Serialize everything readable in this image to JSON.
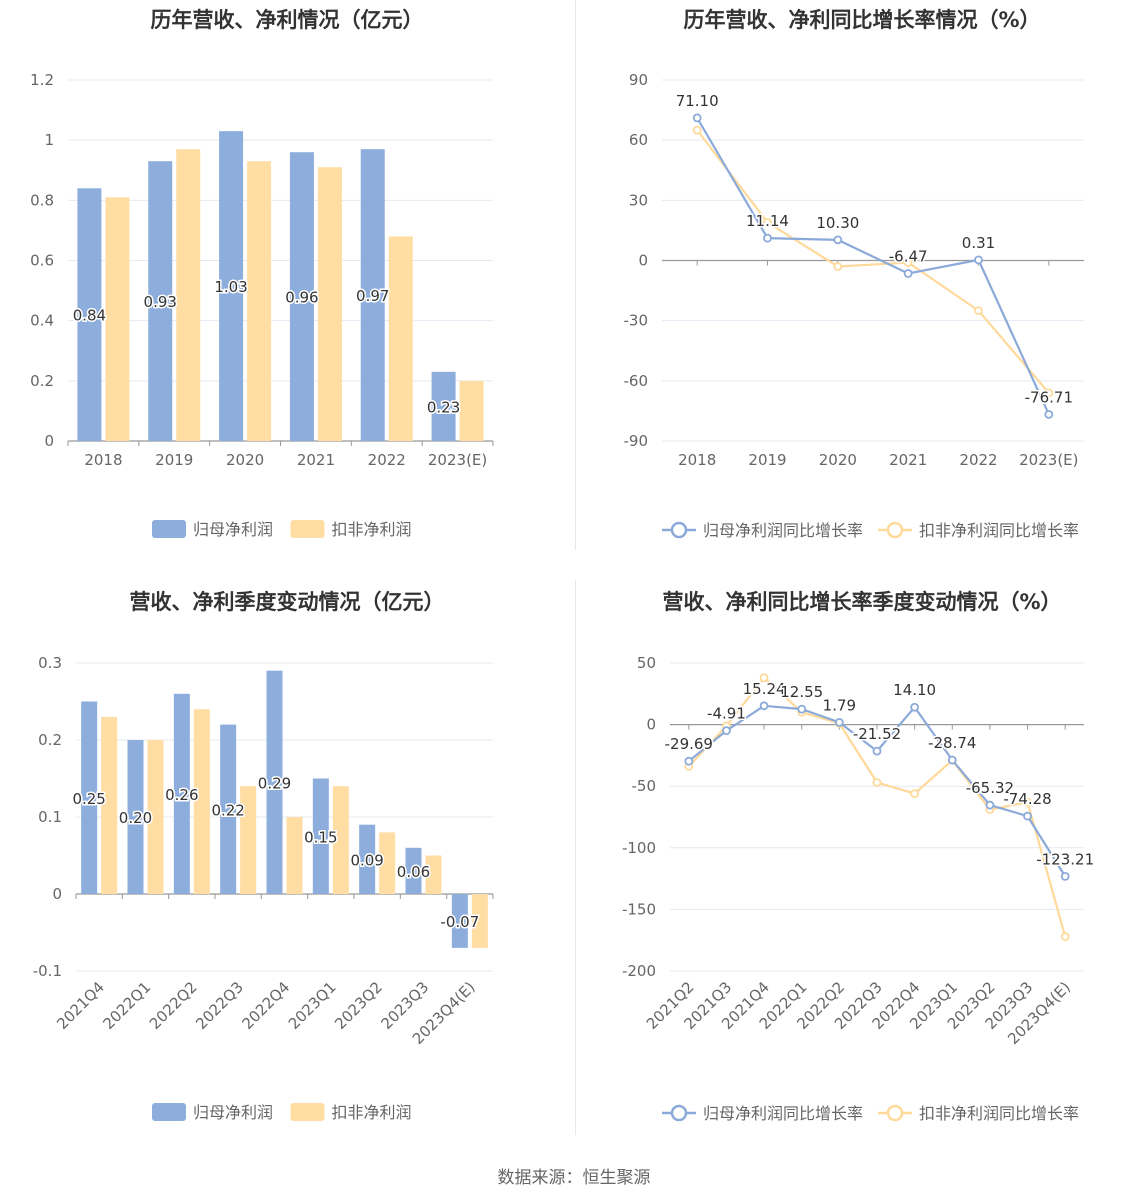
{
  "colors": {
    "blue": "#8DAEDC",
    "orange": "#FFDDA3",
    "axis": "#999999",
    "grid": "#E6E9F2",
    "text": "#666666",
    "label": "#333333",
    "line_blue": "#8BAAD9",
    "line_orange": "#FFD99A"
  },
  "source": "数据来源：恒生聚源",
  "chart_data": [
    {
      "type": "bar",
      "title": "历年营收、净利情况（亿元）",
      "categories": [
        "2018",
        "2019",
        "2020",
        "2021",
        "2022",
        "2023(E)"
      ],
      "series": [
        {
          "name": "归母净利润",
          "values": [
            0.84,
            0.93,
            1.03,
            0.96,
            0.97,
            0.23
          ],
          "labels": [
            "0.84",
            "0.93",
            "1.03",
            "0.96",
            "0.97",
            "0.23"
          ]
        },
        {
          "name": "扣非净利润",
          "values": [
            0.81,
            0.97,
            0.93,
            0.91,
            0.68,
            0.2
          ]
        }
      ],
      "yticks": [
        "1.2",
        "1",
        "0.8",
        "0.6",
        "0.4",
        "0.2",
        "0"
      ],
      "ylim": [
        0,
        1.2
      ],
      "legend": "bottom"
    },
    {
      "type": "line",
      "title": "历年营收、净利同比增长率情况（%）",
      "categories": [
        "2018",
        "2019",
        "2020",
        "2021",
        "2022",
        "2023(E)"
      ],
      "series": [
        {
          "name": "归母净利润同比增长率",
          "values": [
            71.1,
            11.14,
            10.3,
            -6.47,
            0.31,
            -76.71
          ],
          "labels": [
            "71.10",
            "11.14",
            "10.30",
            "-6.47",
            "0.31",
            "-76.71"
          ]
        },
        {
          "name": "扣非净利润同比增长率",
          "values": [
            65,
            19,
            -3,
            -1,
            -25,
            -66
          ]
        }
      ],
      "yticks": [
        "90",
        "60",
        "30",
        "0",
        "-30",
        "-60",
        "-90"
      ],
      "ylim": [
        -90,
        90
      ],
      "legend": "bottom"
    },
    {
      "type": "bar",
      "title": "营收、净利季度变动情况（亿元）",
      "categories": [
        "2021Q4",
        "2022Q1",
        "2022Q2",
        "2022Q3",
        "2022Q4",
        "2023Q1",
        "2023Q2",
        "2023Q3",
        "2023Q4(E)"
      ],
      "series": [
        {
          "name": "归母净利润",
          "values": [
            0.25,
            0.2,
            0.26,
            0.22,
            0.29,
            0.15,
            0.09,
            0.06,
            -0.07
          ],
          "labels": [
            "0.25",
            "0.20",
            "0.26",
            "0.22",
            "0.29",
            "0.15",
            "0.09",
            "0.06",
            "-0.07"
          ]
        },
        {
          "name": "扣非净利润",
          "values": [
            0.23,
            0.2,
            0.24,
            0.14,
            0.1,
            0.14,
            0.08,
            0.05,
            -0.07
          ]
        }
      ],
      "yticks": [
        "0.3",
        "0.2",
        "0.1",
        "0",
        "-0.1"
      ],
      "ylim": [
        -0.1,
        0.3
      ],
      "legend": "bottom"
    },
    {
      "type": "line",
      "title": "营收、净利同比增长率季度变动情况（%）",
      "categories": [
        "2021Q2",
        "2021Q3",
        "2021Q4",
        "2022Q1",
        "2022Q2",
        "2022Q3",
        "2022Q4",
        "2023Q1",
        "2023Q2",
        "2023Q3",
        "2023Q4(E)"
      ],
      "series": [
        {
          "name": "归母净利润同比增长率",
          "values": [
            -29.69,
            -4.91,
            15.24,
            12.55,
            1.79,
            -21.52,
            14.1,
            -28.74,
            -65.32,
            -74.28,
            -123.21
          ],
          "labels": [
            "-29.69",
            "-4.91",
            "15.24",
            "12.55",
            "1.79",
            "-21.52",
            "14.10",
            "-28.74",
            "-65.32",
            "-74.28",
            "-123.21"
          ]
        },
        {
          "name": "扣非净利润同比增长率",
          "values": [
            -34,
            -1,
            38,
            10,
            1,
            -47,
            -56,
            -29,
            -69,
            -63,
            -172
          ]
        }
      ],
      "yticks": [
        "50",
        "0",
        "-50",
        "-100",
        "-150",
        "-200"
      ],
      "ylim": [
        -200,
        50
      ],
      "legend": "bottom"
    }
  ]
}
